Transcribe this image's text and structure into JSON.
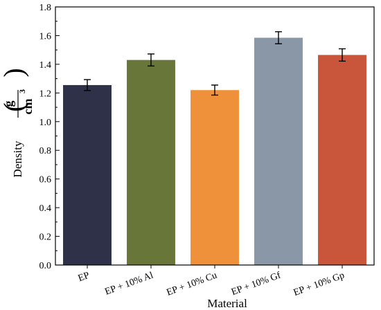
{
  "chart_data": {
    "type": "bar",
    "title": "",
    "xlabel": "Material",
    "ylabel": "Density",
    "ylabel_unit": {
      "numerator": "g",
      "denominator": "cm",
      "exponent": "3"
    },
    "categories": [
      "EP",
      "EP + 10% Al",
      "EP + 10% Cu",
      "EP + 10% Gf",
      "EP + 10% Gp"
    ],
    "values": [
      1.255,
      1.43,
      1.22,
      1.585,
      1.465
    ],
    "errors": [
      0.038,
      0.042,
      0.035,
      0.042,
      0.043
    ],
    "colors": [
      "#2e3147",
      "#687639",
      "#ef913a",
      "#8a97a6",
      "#c9563a"
    ],
    "ylim": [
      0,
      1.8
    ],
    "yticks": [
      "0.0",
      "0.2",
      "0.4",
      "0.6",
      "0.8",
      "1.0",
      "1.2",
      "1.4",
      "1.6",
      "1.8"
    ],
    "grid": false,
    "legend": "none"
  }
}
